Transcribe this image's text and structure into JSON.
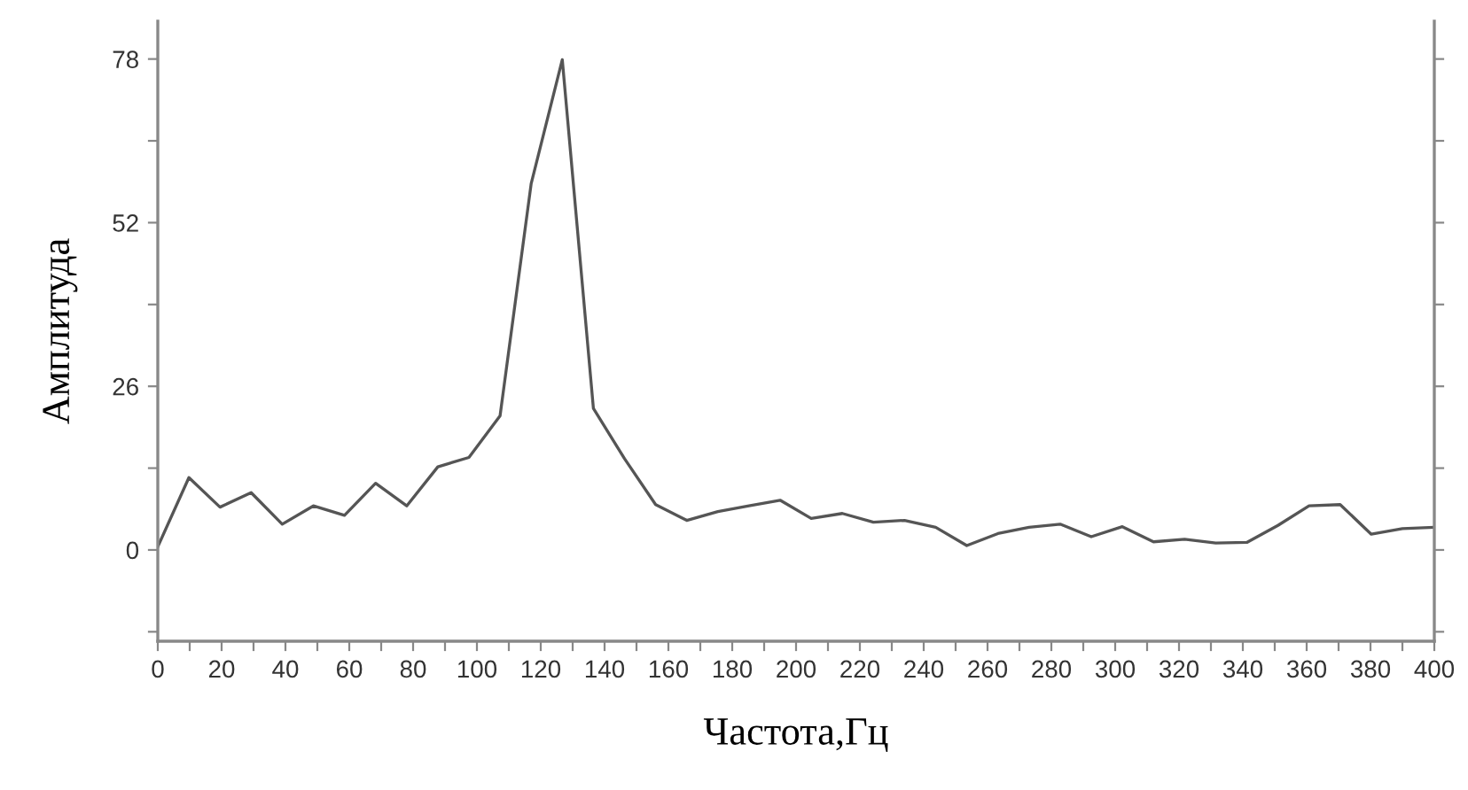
{
  "chart_data": {
    "type": "line",
    "xlabel": "Частота,Гц",
    "ylabel": "Амплитуда",
    "x": [
      0,
      9.75,
      19.5,
      29.25,
      39,
      48.75,
      58.5,
      68.25,
      78,
      87.75,
      97.5,
      107.25,
      117,
      126.75,
      136.5,
      146.25,
      156,
      165.75,
      175.5,
      185.25,
      195,
      204.75,
      214.5,
      224.25,
      234,
      243.75,
      253.5,
      263.25,
      273,
      282.75,
      292.5,
      302.25,
      312,
      321.75,
      331.5,
      341.25,
      351,
      360.75,
      370.5,
      380.25,
      390,
      399.75
    ],
    "series": [
      {
        "color": "#555555",
        "values": [
          0.5,
          11.5,
          6.8,
          9.1,
          4.1,
          7.0,
          5.5,
          10.6,
          7.0,
          13.2,
          14.7,
          21.3,
          58.2,
          77.9,
          22.5,
          14.5,
          7.2,
          4.7,
          6.1,
          7.0,
          7.9,
          5.0,
          5.8,
          4.4,
          4.7,
          3.6,
          0.7,
          2.6,
          3.6,
          4.1,
          2.1,
          3.7,
          1.3,
          1.7,
          1.1,
          1.2,
          3.9,
          7.0,
          7.2,
          2.5,
          3.4,
          3.6
        ]
      }
    ],
    "xlim": [
      0,
      400
    ],
    "ylim": [
      -14.5,
      84
    ],
    "xticks": [
      0,
      {
        "value": 10,
        "label": null
      },
      20,
      {
        "value": 30,
        "label": null
      },
      40,
      {
        "value": 50,
        "label": null
      },
      60,
      {
        "value": 70,
        "label": null
      },
      80,
      {
        "value": 90,
        "label": null
      },
      100,
      {
        "value": 110,
        "label": null
      },
      120,
      {
        "value": 130,
        "label": null
      },
      140,
      {
        "value": 150,
        "label": null
      },
      160,
      {
        "value": 170,
        "label": null
      },
      180,
      {
        "value": 190,
        "label": null
      },
      200,
      {
        "value": 210,
        "label": null
      },
      220,
      {
        "value": 230,
        "label": null
      },
      240,
      {
        "value": 250,
        "label": null
      },
      260,
      {
        "value": 270,
        "label": null
      },
      280,
      {
        "value": 290,
        "label": null
      },
      300,
      {
        "value": 310,
        "label": null
      },
      320,
      {
        "value": 330,
        "label": null
      },
      340,
      {
        "value": 350,
        "label": null
      },
      360,
      {
        "value": 370,
        "label": null
      },
      380,
      {
        "value": 390,
        "label": null
      },
      400
    ],
    "yticks": [
      {
        "value": -13,
        "label": null
      },
      0,
      {
        "value": 13,
        "label": null
      },
      26,
      {
        "value": 39,
        "label": null
      },
      52,
      {
        "value": 65,
        "label": null
      },
      78
    ],
    "grid": false,
    "marker": "none",
    "line_style": "solid"
  }
}
